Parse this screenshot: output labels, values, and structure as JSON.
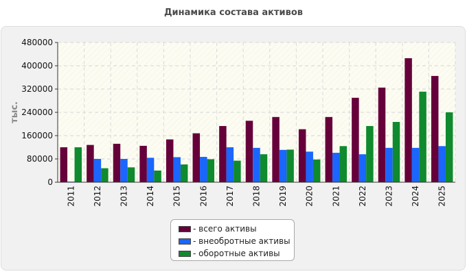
{
  "chart_data": {
    "type": "bar",
    "title": "Динамика состава активов",
    "ylabel": "тыс.",
    "xlabel": "",
    "ylim": [
      0,
      480000
    ],
    "yticks": [
      0,
      80000,
      160000,
      240000,
      320000,
      400000,
      480000
    ],
    "categories": [
      "2011",
      "2012",
      "2013",
      "2014",
      "2015",
      "2016",
      "2017",
      "2018",
      "2019",
      "2020",
      "2021",
      "2022",
      "2023",
      "2024",
      "2025"
    ],
    "series": [
      {
        "name": "всего активы",
        "color": "#66003a",
        "values": [
          120000,
          128000,
          132000,
          125000,
          147000,
          168000,
          193000,
          211000,
          224000,
          182000,
          224000,
          290000,
          325000,
          426000,
          365000
        ]
      },
      {
        "name": "внеобротные активы",
        "color": "#1a66ff",
        "values": [
          2000,
          80000,
          80000,
          84000,
          86000,
          87000,
          120000,
          118000,
          111000,
          105000,
          101000,
          96000,
          118000,
          118000,
          124000
        ]
      },
      {
        "name": "оборотные активы",
        "color": "#0f8a2e",
        "values": [
          120000,
          48000,
          51000,
          40000,
          61000,
          79000,
          74000,
          96000,
          112000,
          78000,
          124000,
          193000,
          207000,
          311000,
          240000
        ]
      }
    ],
    "grid": true,
    "legend_position": "bottom"
  }
}
